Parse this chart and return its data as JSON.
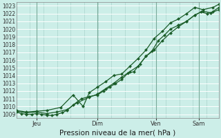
{
  "bg_color": "#cceee8",
  "grid_color": "#aad4cc",
  "line_color": "#1a5c28",
  "marker_color": "#1a5c28",
  "title": "Pression niveau de la mer( hPa )",
  "ylim": [
    1008.5,
    1023.5
  ],
  "yticks": [
    1009,
    1010,
    1011,
    1012,
    1013,
    1014,
    1015,
    1016,
    1017,
    1018,
    1019,
    1020,
    1021,
    1022,
    1023
  ],
  "xtick_labels": [
    "Jeu",
    "Dim",
    "Ven",
    "Sam"
  ],
  "xtick_positions": [
    0.1,
    0.4,
    0.69,
    0.9
  ],
  "vline_color": "#7aaa9a",
  "series1_x": [
    0.0,
    0.025,
    0.05,
    0.075,
    0.1,
    0.125,
    0.15,
    0.175,
    0.2,
    0.225,
    0.25,
    0.28,
    0.32,
    0.36,
    0.4,
    0.43,
    0.46,
    0.49,
    0.52,
    0.55,
    0.58,
    0.61,
    0.64,
    0.67,
    0.7,
    0.73,
    0.76,
    0.8,
    0.84,
    0.88,
    0.91,
    0.94,
    0.97,
    1.0
  ],
  "series1_y": [
    1009.3,
    1009.1,
    1009.0,
    1009.0,
    1009.1,
    1009.0,
    1008.9,
    1008.85,
    1009.0,
    1009.2,
    1009.5,
    1010.2,
    1011.0,
    1011.3,
    1011.5,
    1012.0,
    1012.5,
    1013.0,
    1013.5,
    1014.3,
    1014.5,
    1015.5,
    1016.5,
    1017.2,
    1018.5,
    1019.2,
    1020.0,
    1020.5,
    1021.0,
    1021.8,
    1022.2,
    1022.0,
    1022.2,
    1022.5
  ],
  "series2_x": [
    0.0,
    0.05,
    0.1,
    0.15,
    0.2,
    0.25,
    0.3,
    0.36,
    0.4,
    0.44,
    0.48,
    0.52,
    0.56,
    0.6,
    0.64,
    0.68,
    0.72,
    0.76,
    0.8,
    0.84,
    0.88,
    0.92,
    0.96,
    1.0
  ],
  "series2_y": [
    1009.4,
    1009.2,
    1009.3,
    1009.1,
    1009.3,
    1009.6,
    1010.5,
    1011.2,
    1011.6,
    1012.3,
    1013.0,
    1013.8,
    1014.5,
    1015.2,
    1016.5,
    1017.3,
    1018.5,
    1019.5,
    1020.3,
    1021.0,
    1021.8,
    1022.3,
    1022.1,
    1022.8
  ],
  "series3_x": [
    0.0,
    0.05,
    0.1,
    0.15,
    0.22,
    0.28,
    0.33,
    0.36,
    0.4,
    0.44,
    0.48,
    0.52,
    0.56,
    0.6,
    0.64,
    0.68,
    0.72,
    0.76,
    0.8,
    0.84,
    0.88,
    0.92,
    0.97,
    1.0
  ],
  "series3_y": [
    1009.5,
    1009.3,
    1009.4,
    1009.5,
    1009.9,
    1011.5,
    1010.0,
    1011.8,
    1012.5,
    1013.2,
    1014.0,
    1014.2,
    1015.2,
    1016.2,
    1017.3,
    1018.8,
    1019.7,
    1020.8,
    1021.3,
    1022.0,
    1022.8,
    1022.5,
    1022.8,
    1023.2
  ]
}
